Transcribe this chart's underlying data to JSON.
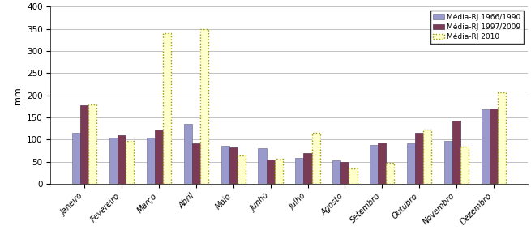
{
  "months": [
    "Janeiro",
    "Fevereiro",
    "Março",
    "Abril",
    "Maio",
    "Junho",
    "Julho",
    "Agosto",
    "Setembro",
    "Outubro",
    "Novembro",
    "Dezembro"
  ],
  "series1": [
    115,
    105,
    104,
    136,
    86,
    80,
    58,
    53,
    88,
    91,
    98,
    168
  ],
  "series2": [
    178,
    110,
    123,
    91,
    83,
    55,
    70,
    50,
    93,
    115,
    143,
    170
  ],
  "series3": [
    180,
    97,
    340,
    350,
    65,
    57,
    115,
    35,
    48,
    122,
    85,
    207
  ],
  "color1": "#9999cc",
  "color2": "#7b3b55",
  "color3": "#ffffcc",
  "edgecolor3": "#999900",
  "ylabel": "mm",
  "ylim": [
    0,
    400
  ],
  "yticks": [
    0,
    50,
    100,
    150,
    200,
    250,
    300,
    350,
    400
  ],
  "legend1": "Média-RJ 1966/1990",
  "legend2": "Média-RJ 1997/2009",
  "legend3": "Média-RJ 2010",
  "bar_width": 0.22,
  "figsize": [
    6.55,
    2.84
  ],
  "dpi": 100
}
